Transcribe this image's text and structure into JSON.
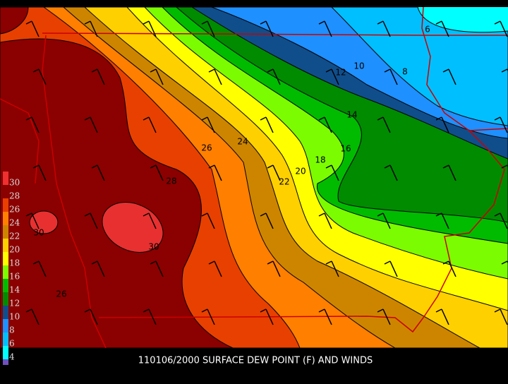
{
  "title": "110106/2000 SURFACE DEW POINT (F) AND WINDS",
  "legend": {
    "labels": [
      "30",
      "28",
      "26",
      "24",
      "22",
      "20",
      "18",
      "16",
      "14",
      "12",
      "10",
      "8",
      "6",
      "4"
    ]
  },
  "contour_labels": [
    "6",
    "8",
    "10",
    "12",
    "14",
    "16",
    "18",
    "20",
    "22",
    "24",
    "26",
    "28",
    "30",
    "30",
    "26"
  ]
}
